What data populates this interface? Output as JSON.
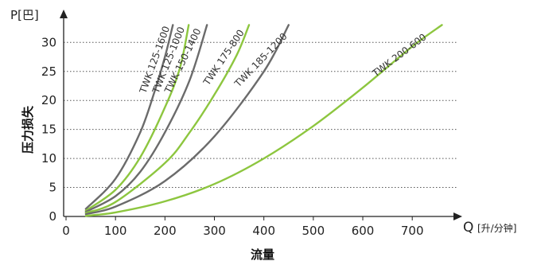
{
  "chart_data": {
    "type": "line",
    "title": "",
    "xlabel": "流量",
    "ylabel": "压力损失",
    "x_axis_symbol": "Q",
    "x_axis_unit": "[升/分钟]",
    "y_axis_label": "P[巴]",
    "xlim": [
      0,
      790
    ],
    "ylim": [
      0,
      33
    ],
    "x_ticks": [
      0,
      100,
      200,
      300,
      400,
      500,
      600,
      700
    ],
    "y_ticks": [
      0,
      5,
      10,
      15,
      20,
      25,
      30
    ],
    "grid": "horizontal-dotted",
    "colors": {
      "gray": "#6b6b6b",
      "green": "#8dc63f"
    },
    "series": [
      {
        "name": "TWK 125-1600",
        "color": "gray",
        "x": [
          40,
          100,
          150,
          180,
          200,
          216
        ],
        "y": [
          1.3,
          6.5,
          14.5,
          21.8,
          27.5,
          33
        ]
      },
      {
        "name": "TWK 125-1000",
        "color": "green",
        "x": [
          40,
          100,
          150,
          200,
          230,
          248
        ],
        "y": [
          1.0,
          4.6,
          10.2,
          18.8,
          25.5,
          33
        ]
      },
      {
        "name": "TWK 150-1400",
        "color": "gray",
        "x": [
          40,
          100,
          150,
          200,
          250,
          285
        ],
        "y": [
          0.8,
          3.5,
          7.7,
          14.5,
          23.5,
          33
        ]
      },
      {
        "name": "TWK 175-800",
        "color": "green",
        "x": [
          40,
          100,
          200,
          250,
          300,
          345,
          370
        ],
        "y": [
          0.6,
          2.5,
          9.2,
          14.5,
          21.0,
          27.8,
          33
        ]
      },
      {
        "name": "TWK 185-1200",
        "color": "gray",
        "x": [
          40,
          100,
          200,
          300,
          400,
          450
        ],
        "y": [
          0.4,
          1.7,
          6.1,
          13.8,
          25.0,
          33
        ]
      },
      {
        "name": "TWK 200-600",
        "color": "green",
        "x": [
          40,
          100,
          200,
          300,
          400,
          500,
          600,
          700,
          760
        ],
        "y": [
          0.1,
          0.7,
          2.6,
          5.6,
          10.0,
          15.6,
          22.2,
          29.3,
          33
        ]
      }
    ]
  }
}
